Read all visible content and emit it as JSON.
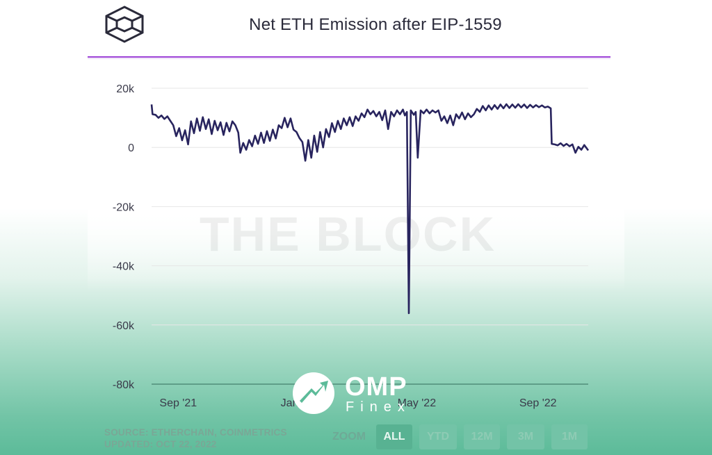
{
  "chart_data": {
    "type": "line",
    "title": "Net ETH Emission after EIP-1559",
    "xlabel": "",
    "ylabel": "",
    "ylim": [
      -80000,
      20000
    ],
    "yticks": [
      {
        "value": 20000,
        "label": "20k"
      },
      {
        "value": 0,
        "label": "0"
      },
      {
        "value": -20000,
        "label": "-20k"
      },
      {
        "value": -40000,
        "label": "-40k"
      },
      {
        "value": -60000,
        "label": "-60k"
      },
      {
        "value": -80000,
        "label": "-80k"
      }
    ],
    "xlim": [
      "2021-08-05",
      "2022-10-22"
    ],
    "xticks": [
      {
        "date": "2021-09-01",
        "label": "Sep '21"
      },
      {
        "date": "2022-01-01",
        "label": "Jan '22"
      },
      {
        "date": "2022-05-01",
        "label": "May '22"
      },
      {
        "date": "2022-09-01",
        "label": "Sep '22"
      }
    ],
    "grid": true,
    "series": [
      {
        "color": "#28245e",
        "points": [
          [
            "2021-08-05",
            14500
          ],
          [
            "2021-08-06",
            11200
          ],
          [
            "2021-08-09",
            11000
          ],
          [
            "2021-08-12",
            10000
          ],
          [
            "2021-08-15",
            10800
          ],
          [
            "2021-08-18",
            9600
          ],
          [
            "2021-08-21",
            10500
          ],
          [
            "2021-08-24",
            9000
          ],
          [
            "2021-08-27",
            7500
          ],
          [
            "2021-08-30",
            3800
          ],
          [
            "2021-09-02",
            6500
          ],
          [
            "2021-09-05",
            2400
          ],
          [
            "2021-09-08",
            5800
          ],
          [
            "2021-09-11",
            1000
          ],
          [
            "2021-09-14",
            8800
          ],
          [
            "2021-09-17",
            4800
          ],
          [
            "2021-09-20",
            9800
          ],
          [
            "2021-09-23",
            5600
          ],
          [
            "2021-09-26",
            10200
          ],
          [
            "2021-09-29",
            6200
          ],
          [
            "2021-10-02",
            9500
          ],
          [
            "2021-10-05",
            4500
          ],
          [
            "2021-10-08",
            9000
          ],
          [
            "2021-10-11",
            5800
          ],
          [
            "2021-10-14",
            8500
          ],
          [
            "2021-10-17",
            4200
          ],
          [
            "2021-10-20",
            8300
          ],
          [
            "2021-10-23",
            5400
          ],
          [
            "2021-10-26",
            8800
          ],
          [
            "2021-10-29",
            7500
          ],
          [
            "2021-11-01",
            5000
          ],
          [
            "2021-11-03",
            -1800
          ],
          [
            "2021-11-06",
            1500
          ],
          [
            "2021-11-09",
            -800
          ],
          [
            "2021-11-12",
            2500
          ],
          [
            "2021-11-15",
            400
          ],
          [
            "2021-11-18",
            4000
          ],
          [
            "2021-11-21",
            1200
          ],
          [
            "2021-11-24",
            5000
          ],
          [
            "2021-11-27",
            1500
          ],
          [
            "2021-11-30",
            5500
          ],
          [
            "2021-12-03",
            2200
          ],
          [
            "2021-12-06",
            6000
          ],
          [
            "2021-12-09",
            3000
          ],
          [
            "2021-12-12",
            7500
          ],
          [
            "2021-12-15",
            6500
          ],
          [
            "2021-12-18",
            10000
          ],
          [
            "2021-12-21",
            6800
          ],
          [
            "2021-12-24",
            9800
          ],
          [
            "2021-12-27",
            6000
          ],
          [
            "2021-12-30",
            5200
          ],
          [
            "2022-01-02",
            3200
          ],
          [
            "2022-01-05",
            1800
          ],
          [
            "2022-01-08",
            -4500
          ],
          [
            "2022-01-11",
            2500
          ],
          [
            "2022-01-14",
            -3500
          ],
          [
            "2022-01-17",
            4000
          ],
          [
            "2022-01-20",
            -1500
          ],
          [
            "2022-01-23",
            5200
          ],
          [
            "2022-01-26",
            0
          ],
          [
            "2022-01-29",
            6200
          ],
          [
            "2022-02-01",
            3500
          ],
          [
            "2022-02-04",
            8200
          ],
          [
            "2022-02-07",
            5200
          ],
          [
            "2022-02-10",
            9000
          ],
          [
            "2022-02-13",
            6200
          ],
          [
            "2022-02-16",
            9800
          ],
          [
            "2022-02-19",
            7500
          ],
          [
            "2022-02-22",
            10200
          ],
          [
            "2022-02-25",
            7200
          ],
          [
            "2022-02-28",
            10500
          ],
          [
            "2022-03-03",
            9000
          ],
          [
            "2022-03-06",
            11500
          ],
          [
            "2022-03-09",
            10200
          ],
          [
            "2022-03-12",
            12800
          ],
          [
            "2022-03-15",
            11200
          ],
          [
            "2022-03-18",
            12300
          ],
          [
            "2022-03-21",
            10500
          ],
          [
            "2022-03-24",
            12000
          ],
          [
            "2022-03-27",
            9200
          ],
          [
            "2022-03-30",
            12500
          ],
          [
            "2022-04-02",
            6200
          ],
          [
            "2022-04-05",
            12000
          ],
          [
            "2022-04-08",
            10500
          ],
          [
            "2022-04-11",
            12500
          ],
          [
            "2022-04-14",
            11200
          ],
          [
            "2022-04-17",
            12800
          ],
          [
            "2022-04-19",
            10800
          ],
          [
            "2022-04-21",
            12000
          ],
          [
            "2022-04-23",
            -56000
          ],
          [
            "2022-04-25",
            12500
          ],
          [
            "2022-04-28",
            11000
          ],
          [
            "2022-04-30",
            12000
          ],
          [
            "2022-05-02",
            -3500
          ],
          [
            "2022-05-05",
            12500
          ],
          [
            "2022-05-08",
            11500
          ],
          [
            "2022-05-11",
            12800
          ],
          [
            "2022-05-14",
            11500
          ],
          [
            "2022-05-17",
            12500
          ],
          [
            "2022-05-20",
            11800
          ],
          [
            "2022-05-23",
            12500
          ],
          [
            "2022-05-26",
            9000
          ],
          [
            "2022-05-29",
            10500
          ],
          [
            "2022-06-01",
            8200
          ],
          [
            "2022-06-04",
            10800
          ],
          [
            "2022-06-07",
            7500
          ],
          [
            "2022-06-10",
            11200
          ],
          [
            "2022-06-13",
            9800
          ],
          [
            "2022-06-16",
            11800
          ],
          [
            "2022-06-19",
            9500
          ],
          [
            "2022-06-22",
            11500
          ],
          [
            "2022-06-25",
            10200
          ],
          [
            "2022-06-28",
            11200
          ],
          [
            "2022-07-01",
            13000
          ],
          [
            "2022-07-04",
            12000
          ],
          [
            "2022-07-07",
            14000
          ],
          [
            "2022-07-10",
            12500
          ],
          [
            "2022-07-13",
            14200
          ],
          [
            "2022-07-16",
            12800
          ],
          [
            "2022-07-19",
            14300
          ],
          [
            "2022-07-22",
            13000
          ],
          [
            "2022-07-25",
            14500
          ],
          [
            "2022-07-28",
            13200
          ],
          [
            "2022-07-31",
            14600
          ],
          [
            "2022-08-03",
            13300
          ],
          [
            "2022-08-06",
            14500
          ],
          [
            "2022-08-09",
            13400
          ],
          [
            "2022-08-12",
            14600
          ],
          [
            "2022-08-15",
            13500
          ],
          [
            "2022-08-18",
            14500
          ],
          [
            "2022-08-21",
            13300
          ],
          [
            "2022-08-24",
            14400
          ],
          [
            "2022-08-27",
            13500
          ],
          [
            "2022-08-30",
            14300
          ],
          [
            "2022-09-02",
            13600
          ],
          [
            "2022-09-05",
            14200
          ],
          [
            "2022-09-08",
            13500
          ],
          [
            "2022-09-11",
            13800
          ],
          [
            "2022-09-14",
            13200
          ],
          [
            "2022-09-15",
            1200
          ],
          [
            "2022-09-18",
            1000
          ],
          [
            "2022-09-21",
            700
          ],
          [
            "2022-09-24",
            1400
          ],
          [
            "2022-09-27",
            500
          ],
          [
            "2022-09-30",
            1200
          ],
          [
            "2022-10-03",
            400
          ],
          [
            "2022-10-06",
            1000
          ],
          [
            "2022-10-09",
            -1800
          ],
          [
            "2022-10-12",
            200
          ],
          [
            "2022-10-15",
            -800
          ],
          [
            "2022-10-18",
            800
          ],
          [
            "2022-10-22",
            -1000
          ]
        ]
      }
    ]
  },
  "watermark": "THE BLOCK",
  "source": {
    "line1": "SOURCE: ETHERCHAIN, COINMETRICS",
    "line2": "UPDATED: OCT 22, 2022"
  },
  "zoom": {
    "label": "ZOOM",
    "buttons": [
      "ALL",
      "YTD",
      "12M",
      "3M",
      "1M"
    ],
    "active": "ALL"
  },
  "colors": {
    "line": "#28245e",
    "accent": "#9b3fd6",
    "grid": "#e6e6e6",
    "zero_line": "#5f9e88"
  },
  "branding": {
    "name": "OMP",
    "sub": "Finex"
  }
}
